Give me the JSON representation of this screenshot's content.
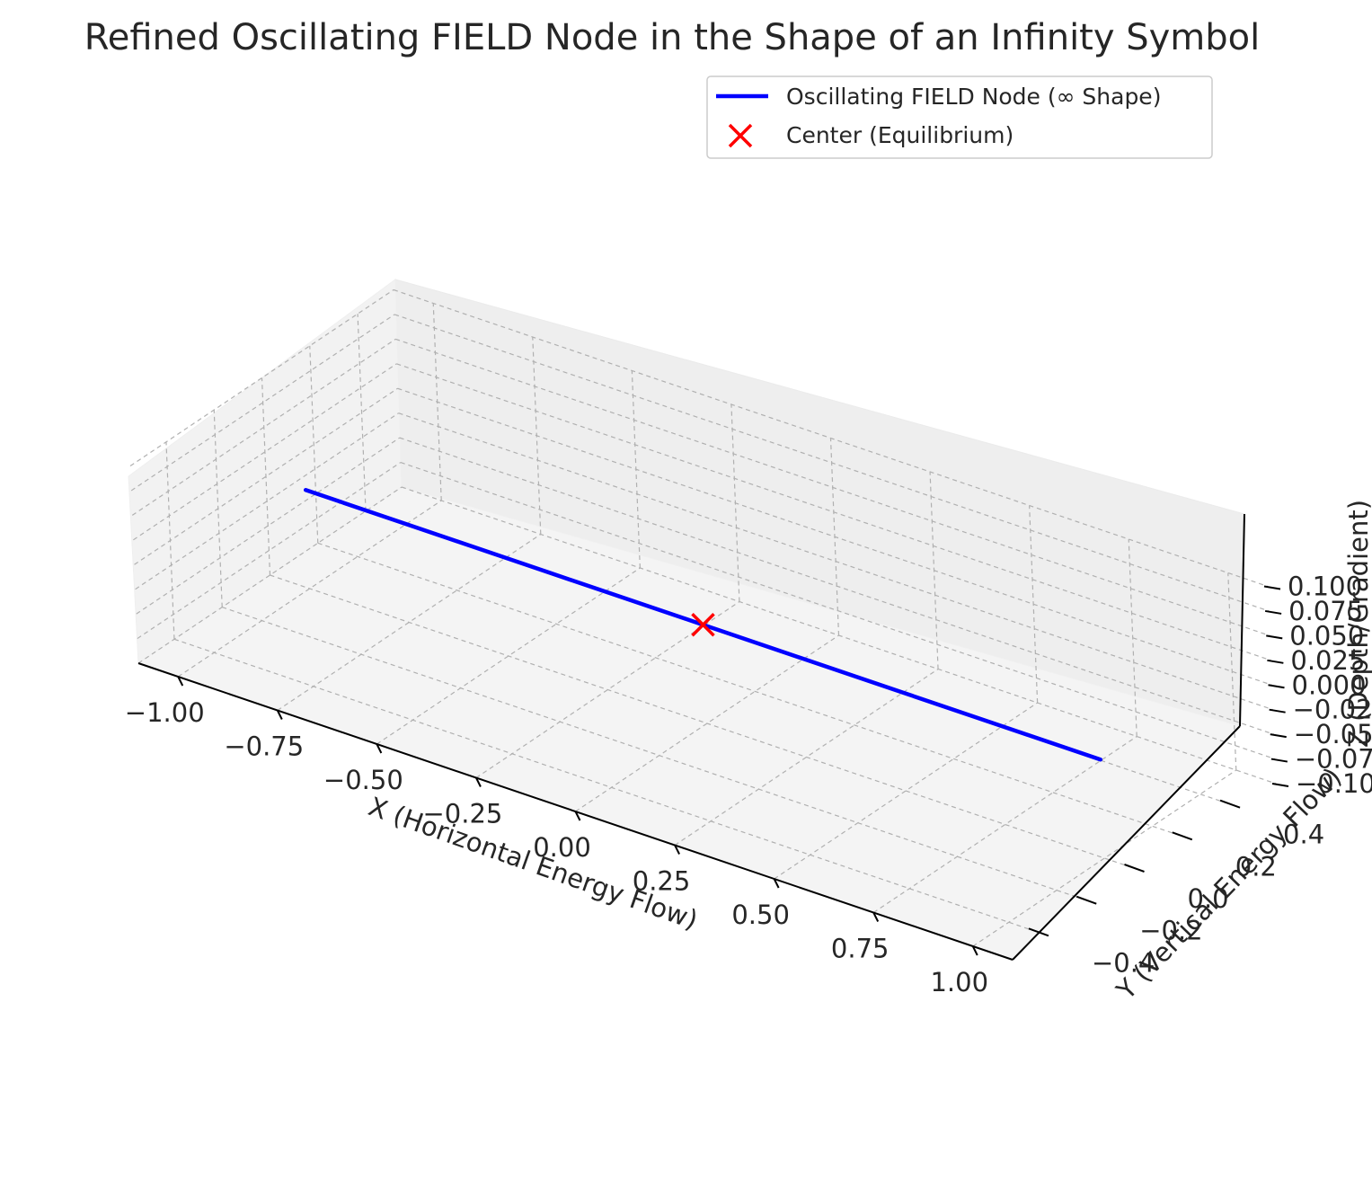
{
  "chart_data": {
    "type": "line",
    "projection": "3d",
    "title": "Refined Oscillating FIELD Node in the Shape of an Infinity Symbol",
    "xlabel": "X (Horizontal Energy Flow)",
    "ylabel": "Y (Vertical Energy Flow)",
    "zlabel": "Z (Depth/Gradient)",
    "xlim": [
      -1.1,
      1.1
    ],
    "ylim": [
      -0.55,
      0.55
    ],
    "zlim": [
      -0.1,
      0.1
    ],
    "x_ticks": [
      "−1.00",
      "−0.75",
      "−0.50",
      "−0.25",
      "0.00",
      "0.25",
      "0.50",
      "0.75",
      "1.00"
    ],
    "y_ticks": [
      "−0.4",
      "−0.2",
      "0.0",
      "0.2",
      "0.4"
    ],
    "z_ticks": [
      "−0.100",
      "−0.075",
      "−0.050",
      "−0.025",
      "0.000",
      "0.025",
      "0.050",
      "0.075",
      "0.100"
    ],
    "grid": true,
    "grid_style": "dashed",
    "legend_position": "top-right",
    "series": [
      {
        "name": "Oscillating FIELD Node (∞ Shape)",
        "kind": "line",
        "color": "#0000ff",
        "x": [
          -1.0,
          -0.75,
          -0.5,
          -0.25,
          0.0,
          0.25,
          0.5,
          0.75,
          1.0
        ],
        "y": [
          0,
          0,
          0,
          0,
          0,
          0,
          0,
          0,
          0
        ],
        "z": [
          0,
          0,
          0,
          0,
          0,
          0,
          0,
          0,
          0
        ]
      },
      {
        "name": "Center (Equilibrium)",
        "kind": "scatter",
        "marker": "x",
        "color": "#ff0000",
        "x": [
          0
        ],
        "y": [
          0
        ],
        "z": [
          0
        ]
      }
    ]
  }
}
